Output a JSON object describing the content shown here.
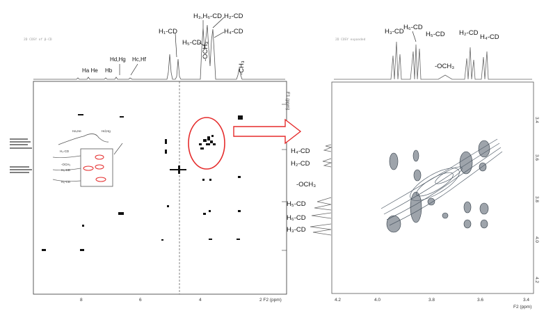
{
  "left_header": "2D COSY of β-CD",
  "right_header": "2D COSY expanded",
  "left_frame_tag": "",
  "right_frame_tag": "",
  "left_peaks": [
    {
      "id": "ha-he",
      "text": "Ha He"
    },
    {
      "id": "hb",
      "text": "Hb"
    },
    {
      "id": "hd-hg",
      "text": "Hd,Hg"
    },
    {
      "id": "hc-hf",
      "text": "Hc,Hf"
    },
    {
      "id": "h1-cd",
      "text": "H₁-CD"
    },
    {
      "id": "h3h6-cd",
      "text": "H₃,H₆-CD"
    },
    {
      "id": "h5-cd",
      "text": "H₅-CD"
    },
    {
      "id": "och3",
      "text": "-OCH₃"
    },
    {
      "id": "h2-cd",
      "text": "H₂-CD"
    },
    {
      "id": "h4-cd",
      "text": "H₄-CD"
    },
    {
      "id": "ch3",
      "text": "-CH₃"
    }
  ],
  "left_axis": {
    "f1_label": "F1 (ppm)",
    "f2_label": "2  F2 (ppm)",
    "ticks": [
      "8",
      "6",
      "4"
    ]
  },
  "inset_labels": [
    "H₃-CD",
    "-OCH₃",
    "H₅-CD",
    "H₆-CD",
    "Ha,He",
    "Hd,Hg"
  ],
  "right_top_peaks": [
    {
      "id": "r-h3",
      "text": "H₃-CD"
    },
    {
      "id": "r-h6",
      "text": "H₆-CD"
    },
    {
      "id": "r-h5",
      "text": "H₅-CD"
    },
    {
      "id": "r-och3",
      "text": "-OCH₃"
    },
    {
      "id": "r-h2",
      "text": "H₂-CD"
    },
    {
      "id": "r-h4",
      "text": "H₄-CD"
    }
  ],
  "right_side_peaks": [
    {
      "id": "s-h4",
      "text": "H₄-CD"
    },
    {
      "id": "s-h2",
      "text": "H₂-CD"
    },
    {
      "id": "s-och3",
      "text": "-OCH₃"
    },
    {
      "id": "s-h5",
      "text": "H₅-CD"
    },
    {
      "id": "s-h6",
      "text": "H₆-CD"
    },
    {
      "id": "s-h3",
      "text": "H₃-CD"
    }
  ],
  "right_axis": {
    "f2_label": "F2 (ppm)",
    "ticks": [
      "4.2",
      "4.0",
      "3.8",
      "3.6",
      "3.4"
    ],
    "right_ticks": [
      "3.4",
      "3.6",
      "3.8",
      "4.0",
      "4.2"
    ]
  },
  "colors": {
    "highlight": "#e52b2b",
    "contour": "#4e5a66",
    "spectrum": "#555555"
  }
}
